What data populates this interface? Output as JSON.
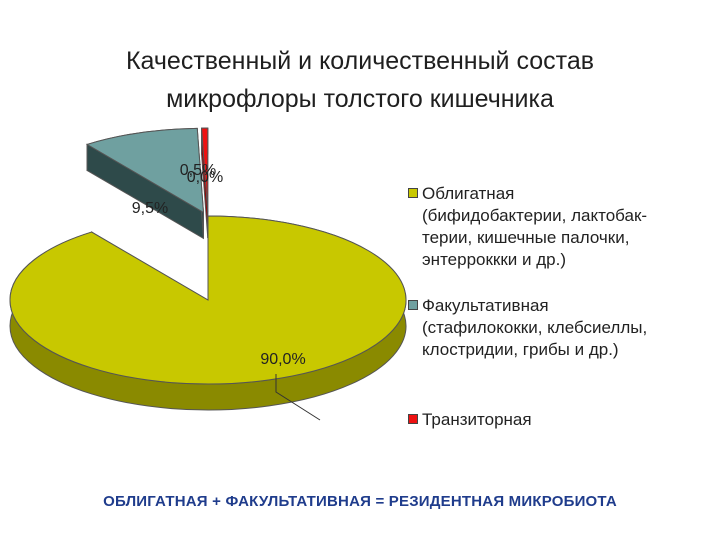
{
  "title_line1": "Качественный и количественный состав",
  "title_line2": "микрофлоры  толстого кишечника",
  "footer": "ОБЛИГАТНАЯ + ФАКУЛЬТАТИВНАЯ = РЕЗИДЕНТНАЯ МИКРОБИОТА",
  "chart_data": {
    "type": "pie",
    "categories": [
      "Облигатная (бифидобактерии, лактобак-терии, кишечные палочки, энтерроккки и др.)",
      "Факультативная (стафилококки, клебсиеллы, клостридии, грибы и др.)",
      "Транзиторная"
    ],
    "legend_lines": [
      [
        "Облигатная",
        "(бифидобактерии, лактобак-",
        "терии, кишечные палочки,",
        "энтерроккки и др.)"
      ],
      [
        "Факультативная",
        "(стафилококки, клебсиеллы,",
        "клостридии, грибы и др.)"
      ],
      [
        "Транзиторная"
      ]
    ],
    "values": [
      90.0,
      9.5,
      0.5
    ],
    "data_labels": [
      "90,0%",
      "9,5%",
      "0,5%"
    ],
    "overlap_label": "0,0%",
    "colors": [
      "#c8c800",
      "#6fa0a0",
      "#ee1111"
    ],
    "side_colors": [
      "#8a8a00",
      "#2e4a4a",
      "#990000"
    ],
    "legend_position": "right",
    "style": "3d-exploded"
  }
}
